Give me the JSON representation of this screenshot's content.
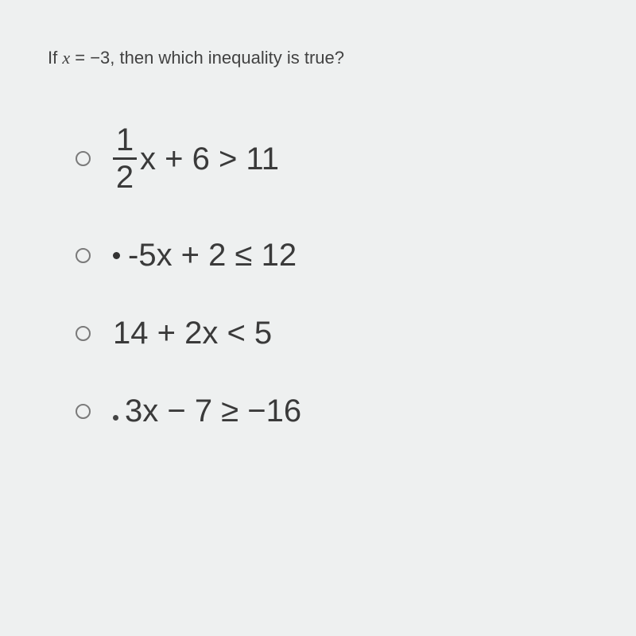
{
  "question": {
    "prefix": "If ",
    "variable": "x",
    "equals": " = ",
    "value": "−3",
    "suffix": ", then which inequality is true?"
  },
  "options": {
    "opt1": {
      "fraction_num": "1",
      "fraction_den": "2",
      "rest": "x + 6 > 11"
    },
    "opt2": {
      "text": "-5x + 2 ≤ 12"
    },
    "opt3": {
      "text": "14 + 2x < 5"
    },
    "opt4": {
      "text": "3x − 7 ≥ −16"
    }
  },
  "colors": {
    "background": "#eef0f0",
    "text": "#3a3a3a",
    "question_text": "#424242",
    "radio_border": "#7a7a7a"
  },
  "typography": {
    "question_fontsize": 22,
    "option_fontsize": 40
  }
}
